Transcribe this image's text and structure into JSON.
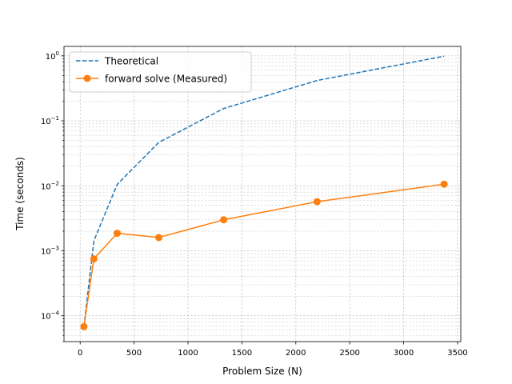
{
  "chart_data": {
    "type": "line",
    "title": "",
    "xlabel": "Problem Size (N)",
    "ylabel": "Time (seconds)",
    "xlim": [
      -150,
      3530
    ],
    "ylim": [
      4e-05,
      1.4
    ],
    "yscale": "log",
    "grid": true,
    "legend_position": "top-left",
    "x_ticks": [
      0,
      500,
      1000,
      1500,
      2000,
      2500,
      3000,
      3500
    ],
    "x_tick_labels": [
      "0",
      "500",
      "1000",
      "1500",
      "2000",
      "2500",
      "3000",
      "3500"
    ],
    "y_ticks": [
      0.0001,
      0.001,
      0.01,
      0.1,
      1
    ],
    "y_tick_labels": [
      {
        "base": "10",
        "exp": "−4"
      },
      {
        "base": "10",
        "exp": "−3"
      },
      {
        "base": "10",
        "exp": "−2"
      },
      {
        "base": "10",
        "exp": "−1"
      },
      {
        "base": "10",
        "exp": "0"
      }
    ],
    "series": [
      {
        "name": "Theoretical",
        "color": "#1f77b4",
        "style": "dashed",
        "marker": "none",
        "x": [
          35,
          127,
          343,
          729,
          1331,
          2197,
          3375
        ],
        "y": [
          6.8e-05,
          0.00142,
          0.0105,
          0.0466,
          0.155,
          0.418,
          0.99
        ]
      },
      {
        "name": "forward solve (Measured)",
        "color": "#ff7f0e",
        "style": "solid",
        "marker": "circle",
        "x": [
          35,
          127,
          343,
          729,
          1331,
          2197,
          3375
        ],
        "y": [
          6.8e-05,
          0.00075,
          0.00186,
          0.0016,
          0.003,
          0.0057,
          0.0106
        ]
      }
    ]
  }
}
